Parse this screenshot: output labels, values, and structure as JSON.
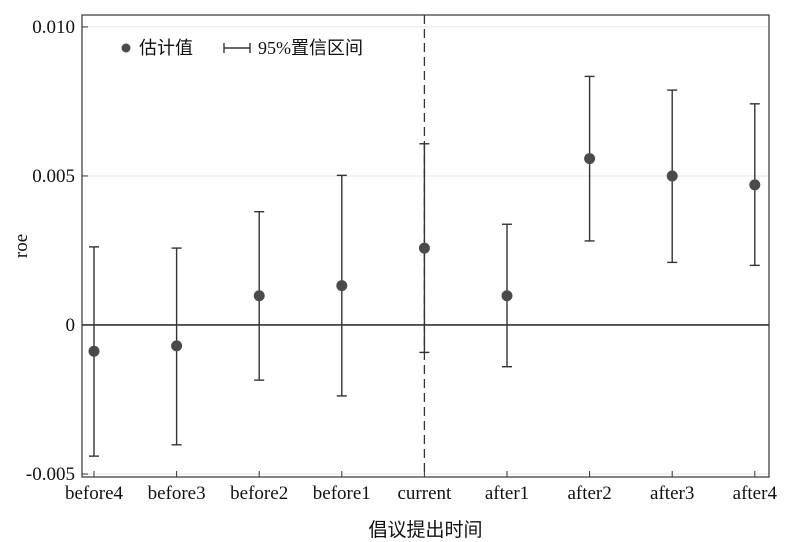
{
  "chart_data": {
    "type": "scatter",
    "title": "",
    "xlabel": "倡议提出时间",
    "ylabel": "roe",
    "categories": [
      "before4",
      "before3",
      "before2",
      "before1",
      "current",
      "after1",
      "after2",
      "after3",
      "after4"
    ],
    "estimates": [
      -0.00088,
      -0.0007,
      0.00098,
      0.00132,
      0.00258,
      0.00098,
      0.00558,
      0.005,
      0.0047
    ],
    "ci_lower": [
      -0.0044,
      -0.00402,
      -0.00185,
      -0.00238,
      -0.00092,
      -0.0014,
      0.00282,
      0.0021,
      0.002
    ],
    "ci_upper": [
      0.00262,
      0.00258,
      0.0038,
      0.00502,
      0.00608,
      0.00338,
      0.00834,
      0.00788,
      0.00742
    ],
    "ylim": [
      -0.0051,
      0.0104
    ],
    "yticks": [
      {
        "value": -0.005,
        "label": "-0.005"
      },
      {
        "value": 0,
        "label": "0"
      },
      {
        "value": 0.005,
        "label": "0.005"
      },
      {
        "value": 0.01,
        "label": "0.010"
      }
    ],
    "reference_line_y": 0,
    "vertical_dashed_line_at": "current",
    "grid": "horizontal-light",
    "legend": {
      "position": "top-left",
      "entries": [
        {
          "symbol": "dot",
          "label": "估计值"
        },
        {
          "symbol": "errorbar",
          "label": "95%置信区间"
        }
      ]
    },
    "colors": {
      "marker": "#4a4a4a",
      "errorbar": "#333333",
      "zero_line": "#333333",
      "grid": "#e6e6e6",
      "dashed_line": "#333333"
    }
  }
}
